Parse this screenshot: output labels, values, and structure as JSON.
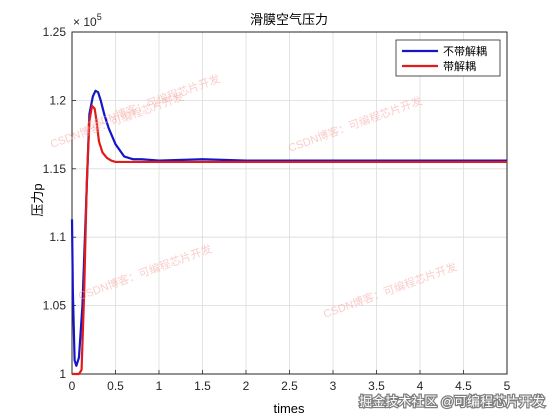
{
  "chart_data": {
    "type": "line",
    "title": "滑膜空气压力",
    "xlabel": "times",
    "ylabel": "压力p",
    "xlim": [
      0,
      5
    ],
    "ylim": [
      1.0,
      1.25
    ],
    "y_exponent_label": "× 10",
    "y_exponent_power": "5",
    "xticks": [
      "0",
      "0.5",
      "1",
      "1.5",
      "2",
      "2.5",
      "3",
      "3.5",
      "4",
      "4.5",
      "5"
    ],
    "yticks": [
      "1",
      "1.05",
      "1.1",
      "1.15",
      "1.2",
      "1.25"
    ],
    "grid": true,
    "legend_position": "top-right",
    "series": [
      {
        "name": "不带解耦",
        "color": "#1515c8",
        "x": [
          0,
          0.01,
          0.03,
          0.05,
          0.08,
          0.12,
          0.16,
          0.2,
          0.24,
          0.27,
          0.3,
          0.33,
          0.37,
          0.42,
          0.5,
          0.6,
          0.7,
          0.8,
          1.0,
          1.5,
          2.0,
          2.5,
          3.0,
          3.5,
          4.0,
          4.5,
          5.0
        ],
        "values": [
          1.113,
          1.06,
          1.01,
          1.006,
          1.012,
          1.05,
          1.12,
          1.19,
          1.203,
          1.207,
          1.206,
          1.2,
          1.19,
          1.18,
          1.168,
          1.159,
          1.157,
          1.157,
          1.156,
          1.157,
          1.156,
          1.156,
          1.156,
          1.156,
          1.156,
          1.156,
          1.156
        ]
      },
      {
        "name": "带解耦",
        "color": "#e01b1b",
        "x": [
          0,
          0.04,
          0.08,
          0.11,
          0.14,
          0.17,
          0.2,
          0.23,
          0.26,
          0.28,
          0.31,
          0.35,
          0.4,
          0.45,
          0.5,
          0.6,
          0.8,
          1.0,
          1.5,
          2.0,
          2.5,
          3.0,
          3.5,
          4.0,
          4.5,
          5.0
        ],
        "values": [
          1.0,
          1.0,
          1.0,
          1.003,
          1.06,
          1.14,
          1.185,
          1.196,
          1.194,
          1.186,
          1.17,
          1.162,
          1.158,
          1.156,
          1.155,
          1.155,
          1.155,
          1.155,
          1.155,
          1.155,
          1.155,
          1.155,
          1.155,
          1.155,
          1.155,
          1.155
        ]
      }
    ]
  },
  "watermarks": [
    "CSDN博客：可编程芯片开发",
    "CSDN博客：可编程芯片开发",
    "CSDN博客：可编程芯片开发",
    "CSDN博客：可编程芯片开发",
    "CSDN博客：可编程芯片开发"
  ],
  "footer_text": "掘金技术社区 @可编程芯片开发"
}
